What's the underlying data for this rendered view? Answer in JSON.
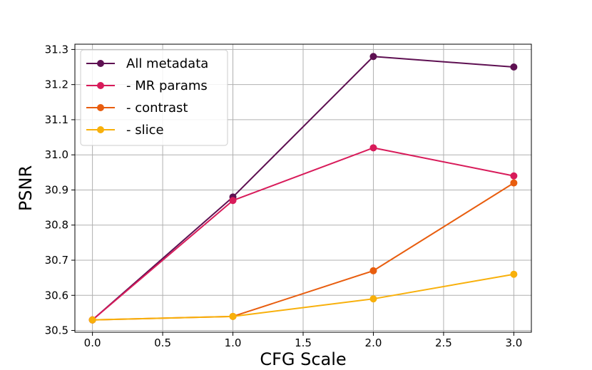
{
  "chart_data": {
    "type": "line",
    "title": "",
    "xlabel": "CFG Scale",
    "ylabel": "PSNR",
    "xlim": [
      -0.125,
      3.125
    ],
    "ylim": [
      30.495,
      31.315
    ],
    "grid": true,
    "legend_position": "top-left",
    "x_ticks": [
      0.0,
      0.5,
      1.0,
      1.5,
      2.0,
      2.5,
      3.0
    ],
    "x_tick_labels": [
      "0.0",
      "0.5",
      "1.0",
      "1.5",
      "2.0",
      "2.5",
      "3.0"
    ],
    "y_ticks": [
      30.5,
      30.6,
      30.7,
      30.8,
      30.9,
      31.0,
      31.1,
      31.2,
      31.3
    ],
    "y_tick_labels": [
      "30.5",
      "30.6",
      "30.7",
      "30.8",
      "30.9",
      "31.0",
      "31.1",
      "31.2",
      "31.3"
    ],
    "x": [
      0.0,
      1.0,
      2.0,
      3.0
    ],
    "series": [
      {
        "name": "All metadata",
        "color": "#5e1052",
        "values": [
          30.53,
          30.88,
          31.28,
          31.25
        ]
      },
      {
        "name": "- MR params",
        "color": "#d81b5a",
        "values": [
          30.53,
          30.87,
          31.02,
          30.94
        ]
      },
      {
        "name": "- contrast",
        "color": "#e85d0e",
        "values": [
          30.53,
          30.54,
          30.67,
          30.92
        ]
      },
      {
        "name": "- slice",
        "color": "#f8b00b",
        "values": [
          30.53,
          30.54,
          30.59,
          30.66
        ]
      }
    ]
  }
}
